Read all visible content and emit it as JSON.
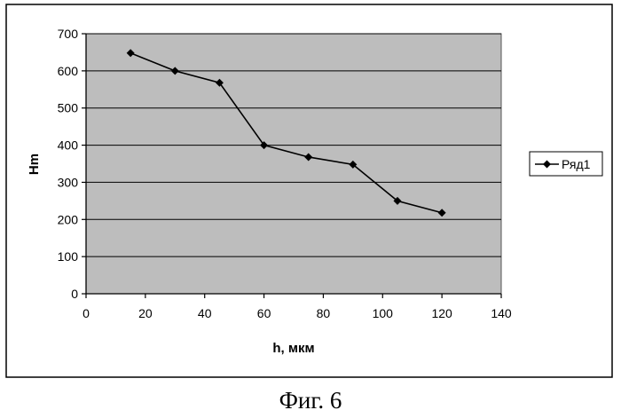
{
  "chart_data": {
    "type": "line",
    "title": "",
    "xlabel": "h, мкм",
    "ylabel": "Hm",
    "xlim": [
      0,
      140
    ],
    "ylim": [
      0,
      700
    ],
    "x_ticks": [
      "0",
      "20",
      "40",
      "60",
      "80",
      "100",
      "120",
      "140"
    ],
    "y_ticks": [
      "0",
      "100",
      "200",
      "300",
      "400",
      "500",
      "600",
      "700"
    ],
    "grid": "horizontal",
    "legend_position": "right",
    "plot_background": "#bdbdbd",
    "series": [
      {
        "name": "Ряд1",
        "color": "#000000",
        "marker": "diamond",
        "x": [
          15,
          30,
          45,
          60,
          75,
          90,
          105,
          120
        ],
        "y": [
          648,
          600,
          568,
          400,
          368,
          348,
          250,
          218
        ]
      }
    ]
  },
  "caption": "Фиг. 6"
}
